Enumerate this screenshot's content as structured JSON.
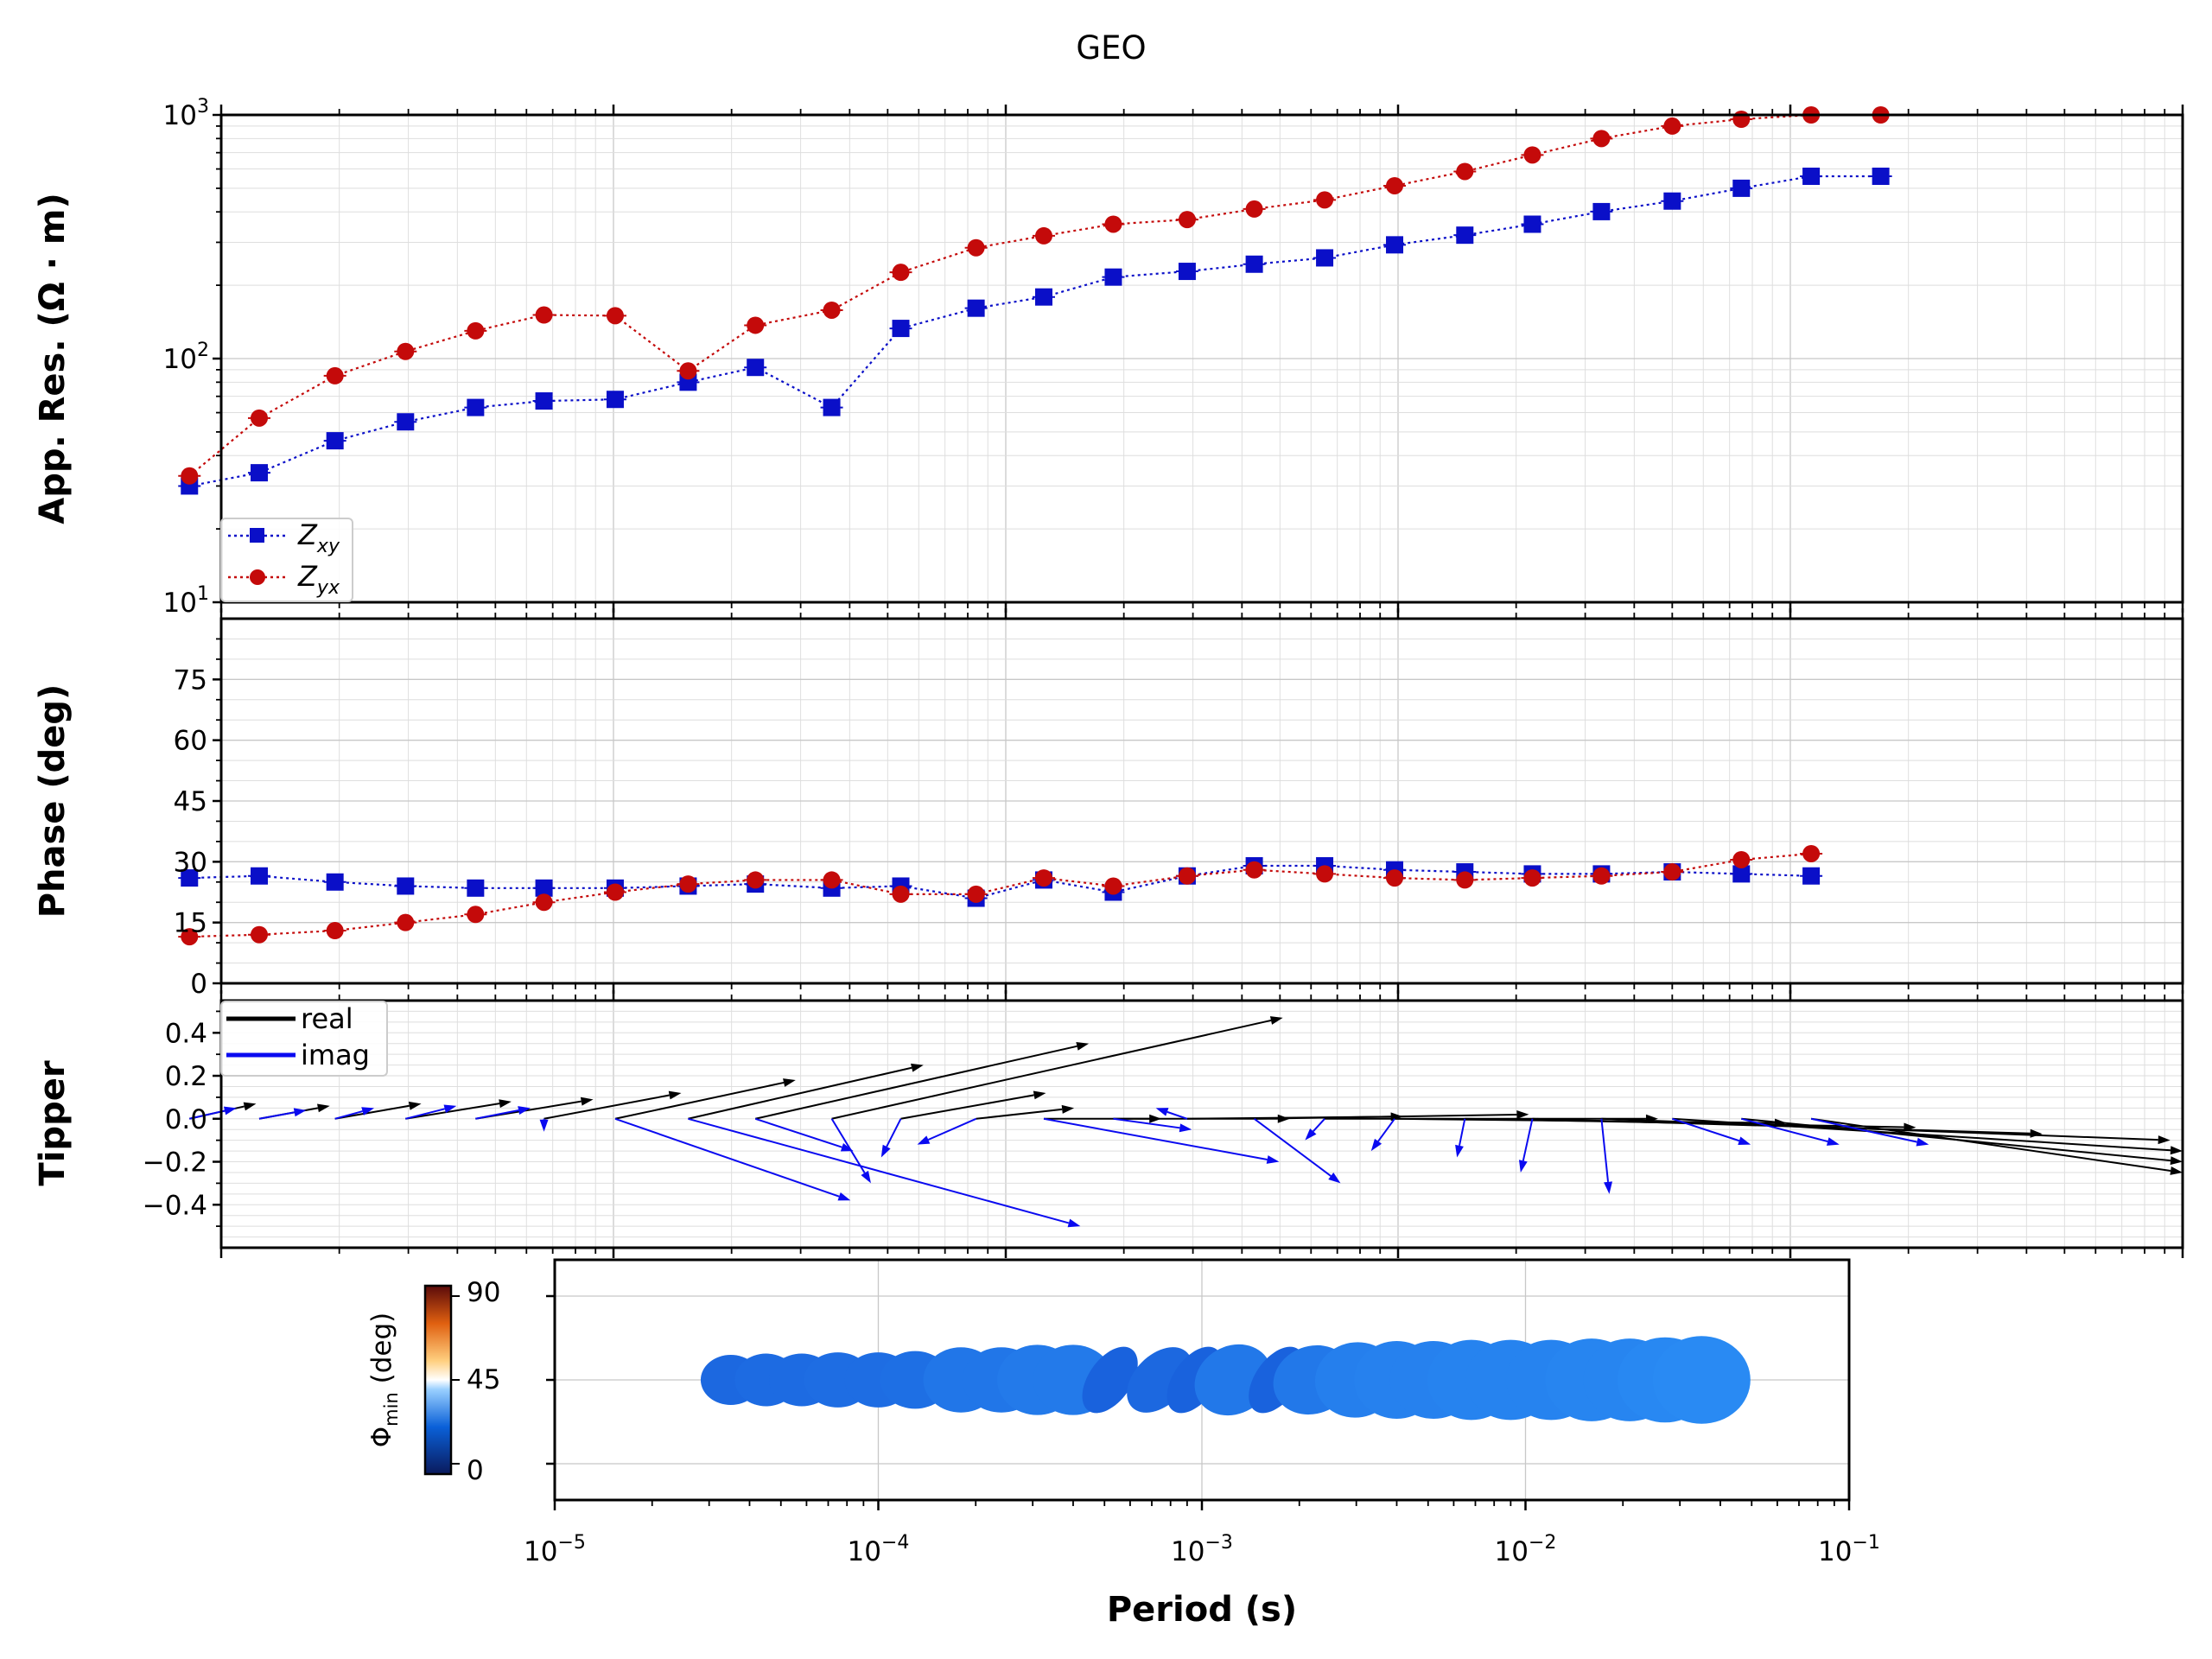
{
  "title": "GEO",
  "colors": {
    "zxy": "#0a0fc8",
    "zyx": "#c40a0a",
    "real": "#000000",
    "imag": "#0a0af0"
  },
  "x_axis": {
    "label": "Period (s)",
    "tick_bases": [
      "10",
      "10",
      "10",
      "10",
      "10"
    ],
    "tick_exponents": [
      "−5",
      "−4",
      "−3",
      "−2",
      "−1"
    ]
  },
  "chart_data": [
    {
      "type": "line",
      "panel": "apparent_resistivity",
      "ylabel": "App. Res. (Ω · m)",
      "yscale": "log",
      "ylim": [
        10,
        1000
      ],
      "xlim": [
        1e-05,
        1
      ],
      "ytick_bases": [
        "10",
        "10",
        "10"
      ],
      "ytick_exponents": [
        "1",
        "2",
        "3"
      ],
      "x": [
        8.3e-06,
        1.25e-05,
        1.95e-05,
        2.95e-05,
        4.45e-05,
        6.65e-05,
        0.000101,
        0.000155,
        0.00023,
        0.00036,
        0.00054,
        0.00084,
        0.00125,
        0.00188,
        0.0029,
        0.0043,
        0.0065,
        0.0098,
        0.0148,
        0.022,
        0.033,
        0.05,
        0.075,
        0.113,
        0.17
      ],
      "series": [
        {
          "name": "Z_xy",
          "label_main": "Z",
          "label_sub": "xy",
          "marker": "square",
          "values": [
            30,
            34,
            46,
            55,
            63,
            67,
            68,
            80,
            92,
            63,
            133,
            161,
            179,
            216,
            228,
            244,
            259,
            293,
            321,
            356,
            401,
            443,
            500,
            560,
            560
          ]
        },
        {
          "name": "Z_yx",
          "label_main": "Z",
          "label_sub": "yx",
          "marker": "circle",
          "values": [
            33,
            57,
            85,
            107,
            130,
            151,
            150,
            89,
            137,
            158,
            226,
            285,
            319,
            356,
            372,
            411,
            448,
            512,
            586,
            685,
            800,
            900,
            960,
            1000,
            1000
          ]
        }
      ]
    },
    {
      "type": "line",
      "panel": "phase",
      "ylabel": "Phase (deg)",
      "ylim": [
        0,
        90
      ],
      "yticks": [
        "0",
        "15",
        "30",
        "45",
        "60",
        "75"
      ],
      "x": [
        8.3e-06,
        1.25e-05,
        1.95e-05,
        2.95e-05,
        4.45e-05,
        6.65e-05,
        0.000101,
        0.000155,
        0.00023,
        0.00036,
        0.00054,
        0.00084,
        0.00125,
        0.00188,
        0.0029,
        0.0043,
        0.0065,
        0.0098,
        0.0148,
        0.022,
        0.033,
        0.05,
        0.075,
        0.113
      ],
      "series": [
        {
          "name": "Z_xy",
          "values": [
            26,
            26.5,
            25,
            24,
            23.5,
            23.5,
            23.5,
            24,
            24.5,
            23.5,
            24,
            21,
            25.5,
            22.5,
            26.5,
            29,
            29,
            28,
            27.5,
            27,
            27,
            27.5,
            27,
            26.5
          ]
        },
        {
          "name": "Z_yx",
          "values": [
            11.5,
            12,
            13,
            15,
            17,
            20,
            22.5,
            24.5,
            25.5,
            25.5,
            22,
            22,
            26,
            24,
            26.5,
            28,
            27,
            26,
            25.5,
            26,
            26.5,
            27.5,
            30.5,
            32
          ]
        }
      ]
    },
    {
      "type": "arrows",
      "panel": "tipper",
      "ylabel": "Tipper",
      "ylim": [
        -0.6,
        0.55
      ],
      "yticks": [
        "0.4",
        "0.2",
        "0.0",
        "−0.2",
        "−0.4"
      ],
      "legend": [
        "real",
        "imag"
      ],
      "real_arrows": [
        {
          "period": 8.3e-06,
          "dx": 0.17,
          "dy": 0.07
        },
        {
          "period": 1.25e-05,
          "dx": 0.18,
          "dy": 0.06
        },
        {
          "period": 1.95e-05,
          "dx": 0.22,
          "dy": 0.07
        },
        {
          "period": 2.95e-05,
          "dx": 0.27,
          "dy": 0.08
        },
        {
          "period": 4.45e-05,
          "dx": 0.3,
          "dy": 0.09
        },
        {
          "period": 6.65e-05,
          "dx": 0.35,
          "dy": 0.12
        },
        {
          "period": 0.000101,
          "dx": 0.46,
          "dy": 0.18
        },
        {
          "period": 0.000155,
          "dx": 0.6,
          "dy": 0.25
        },
        {
          "period": 0.00023,
          "dx": 0.85,
          "dy": 0.35
        },
        {
          "period": 0.00036,
          "dx": 1.15,
          "dy": 0.47
        },
        {
          "period": 0.00054,
          "dx": 0.37,
          "dy": 0.12
        },
        {
          "period": 0.00084,
          "dx": 0.25,
          "dy": 0.05
        },
        {
          "period": 0.00125,
          "dx": 0.3,
          "dy": 0.0
        },
        {
          "period": 0.00188,
          "dx": 0.45,
          "dy": 0.0
        },
        {
          "period": 0.0029,
          "dx": 0.55,
          "dy": 0.01
        },
        {
          "period": 0.0043,
          "dx": 0.7,
          "dy": 0.02
        },
        {
          "period": 0.0065,
          "dx": 0.85,
          "dy": 0.0
        },
        {
          "period": 0.0098,
          "dx": 1.0,
          "dy": -0.02
        },
        {
          "period": 0.0148,
          "dx": 1.15,
          "dy": -0.04
        },
        {
          "period": 0.022,
          "dx": 1.3,
          "dy": -0.07
        },
        {
          "period": 0.033,
          "dx": 1.45,
          "dy": -0.1
        },
        {
          "period": 0.05,
          "dx": 1.6,
          "dy": -0.15
        },
        {
          "period": 0.075,
          "dx": 1.8,
          "dy": -0.2
        },
        {
          "period": 0.113,
          "dx": 1.95,
          "dy": -0.25
        }
      ],
      "imag_arrows": [
        {
          "period": 8.3e-06,
          "dx": 0.12,
          "dy": 0.05
        },
        {
          "period": 1.25e-05,
          "dx": 0.12,
          "dy": 0.04
        },
        {
          "period": 1.95e-05,
          "dx": 0.1,
          "dy": 0.05
        },
        {
          "period": 2.95e-05,
          "dx": 0.13,
          "dy": 0.06
        },
        {
          "period": 4.45e-05,
          "dx": 0.14,
          "dy": 0.05
        },
        {
          "period": 6.65e-05,
          "dx": 0.0,
          "dy": -0.06
        },
        {
          "period": 0.000101,
          "dx": 0.6,
          "dy": -0.38
        },
        {
          "period": 0.000155,
          "dx": 1.0,
          "dy": -0.5
        },
        {
          "period": 0.00023,
          "dx": 0.25,
          "dy": -0.15
        },
        {
          "period": 0.00036,
          "dx": 0.1,
          "dy": -0.3
        },
        {
          "period": 0.00054,
          "dx": -0.05,
          "dy": -0.18
        },
        {
          "period": 0.00084,
          "dx": -0.15,
          "dy": -0.12
        },
        {
          "period": 0.00125,
          "dx": 0.6,
          "dy": -0.2
        },
        {
          "period": 0.00188,
          "dx": 0.2,
          "dy": -0.05
        },
        {
          "period": 0.0029,
          "dx": -0.08,
          "dy": 0.05
        },
        {
          "period": 0.0043,
          "dx": 0.22,
          "dy": -0.3
        },
        {
          "period": 0.0065,
          "dx": -0.05,
          "dy": -0.1
        },
        {
          "period": 0.0098,
          "dx": -0.06,
          "dy": -0.15
        },
        {
          "period": 0.0148,
          "dx": -0.02,
          "dy": -0.18
        },
        {
          "period": 0.022,
          "dx": -0.03,
          "dy": -0.25
        },
        {
          "period": 0.033,
          "dx": 0.02,
          "dy": -0.35
        },
        {
          "period": 0.05,
          "dx": 0.2,
          "dy": -0.12
        },
        {
          "period": 0.075,
          "dx": 0.25,
          "dy": -0.12
        },
        {
          "period": 0.113,
          "dx": 0.3,
          "dy": -0.12
        }
      ]
    },
    {
      "type": "ellipses",
      "panel": "phase_tensor",
      "ylabel_main": "Φ",
      "ylabel_sub": "min",
      "ylabel_unit": " (deg)",
      "xlim": [
        1e-05,
        0.1
      ],
      "colorbar": {
        "ticks": [
          "90",
          "45",
          "0"
        ],
        "range": [
          0,
          90
        ]
      },
      "ellipses": [
        {
          "period": 3.5e-05,
          "phimin": 20,
          "phimax": 24,
          "angle": 0
        },
        {
          "period": 4.5e-05,
          "phimin": 21,
          "phimax": 25,
          "angle": 0
        },
        {
          "period": 5.8e-05,
          "phimin": 21,
          "phimax": 26,
          "angle": 0
        },
        {
          "period": 7.5e-05,
          "phimin": 22,
          "phimax": 27,
          "angle": 0
        },
        {
          "period": 0.0001,
          "phimin": 22,
          "phimax": 27,
          "angle": 0
        },
        {
          "period": 0.00013,
          "phimin": 23,
          "phimax": 28,
          "angle": 0
        },
        {
          "period": 0.00018,
          "phimin": 26,
          "phimax": 30,
          "angle": 0
        },
        {
          "period": 0.00024,
          "phimin": 26,
          "phimax": 31,
          "angle": 0
        },
        {
          "period": 0.00031,
          "phimin": 28,
          "phimax": 32,
          "angle": 0
        },
        {
          "period": 0.0004,
          "phimin": 28,
          "phimax": 32,
          "angle": 0
        },
        {
          "period": 0.00052,
          "phimin": 17,
          "phimax": 30,
          "angle": -55
        },
        {
          "period": 0.00074,
          "phimin": 20,
          "phimax": 31,
          "angle": -45
        },
        {
          "period": 0.00095,
          "phimin": 17,
          "phimax": 30,
          "angle": -55
        },
        {
          "period": 0.00125,
          "phimin": 27,
          "phimax": 32,
          "angle": -30
        },
        {
          "period": 0.0017,
          "phimin": 17,
          "phimax": 30,
          "angle": -55
        },
        {
          "period": 0.0022,
          "phimin": 27,
          "phimax": 32,
          "angle": -20
        },
        {
          "period": 0.003,
          "phimin": 30,
          "phimax": 33,
          "angle": -10
        },
        {
          "period": 0.004,
          "phimin": 31,
          "phimax": 34,
          "angle": 0
        },
        {
          "period": 0.0052,
          "phimin": 31,
          "phimax": 35,
          "angle": 0
        },
        {
          "period": 0.0068,
          "phimin": 32,
          "phimax": 35,
          "angle": 0
        },
        {
          "period": 0.009,
          "phimin": 32,
          "phimax": 36,
          "angle": 0
        },
        {
          "period": 0.012,
          "phimin": 32,
          "phimax": 36,
          "angle": 0
        },
        {
          "period": 0.016,
          "phimin": 33,
          "phimax": 37,
          "angle": 0
        },
        {
          "period": 0.021,
          "phimin": 33,
          "phimax": 37,
          "angle": 0
        },
        {
          "period": 0.027,
          "phimin": 34,
          "phimax": 38,
          "angle": 0
        },
        {
          "period": 0.035,
          "phimin": 35,
          "phimax": 39,
          "angle": 0
        }
      ]
    }
  ]
}
